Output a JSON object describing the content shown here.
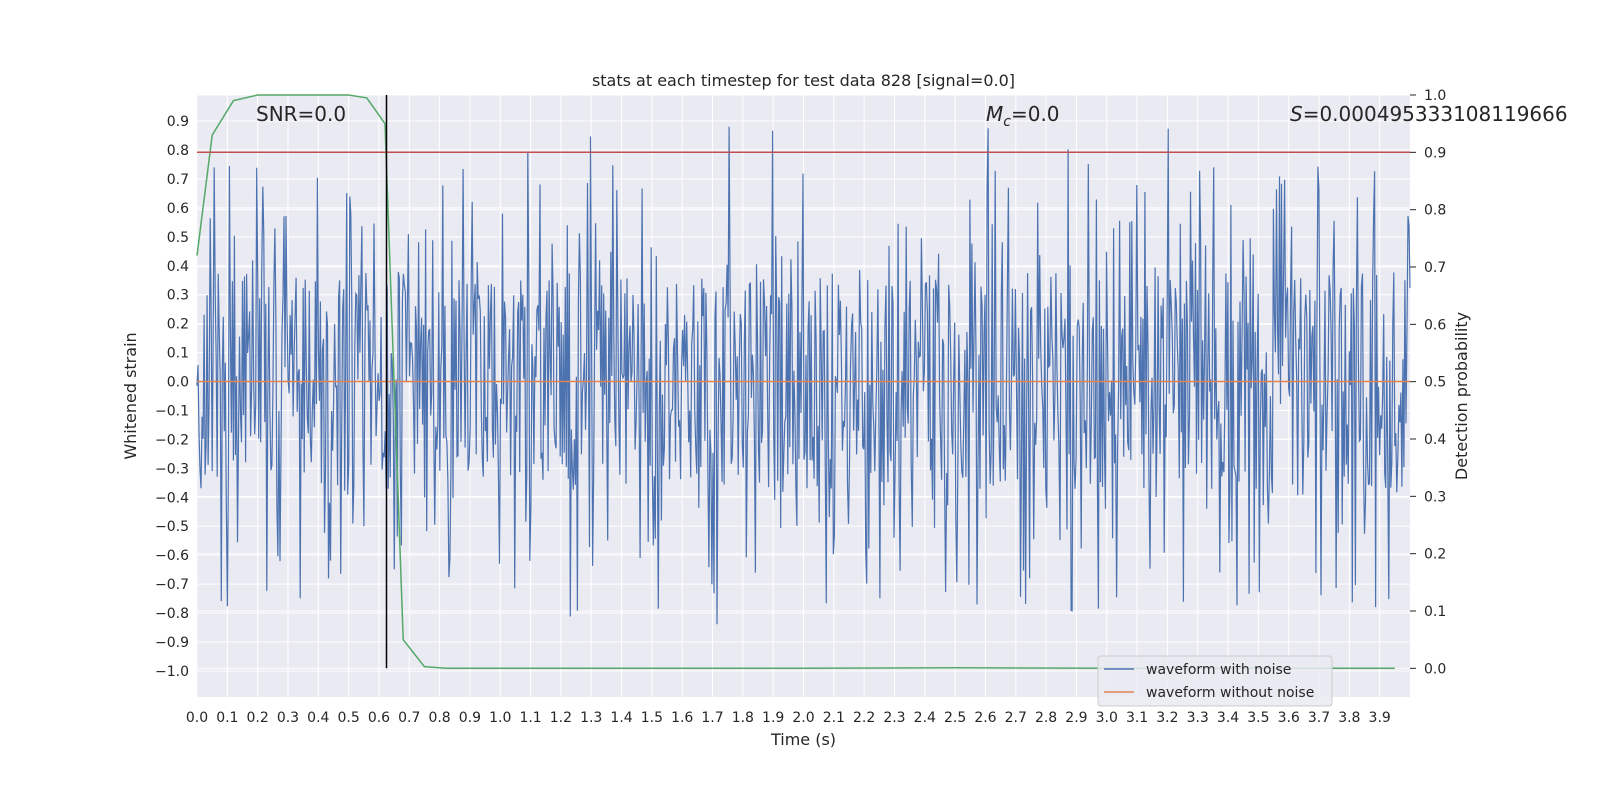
{
  "chart_data": {
    "type": "line",
    "title": "stats at each timestep for test data 828 [signal=0.0]",
    "xlabel": "Time (s)",
    "ylabel": "Whitened strain",
    "ylabel_right": "Detection probability",
    "xlim": [
      0.0,
      4.0
    ],
    "ylim": [
      -1.09,
      0.99
    ],
    "ylim_right": [
      -0.05,
      1.0
    ],
    "grid": true,
    "x_ticks": [
      "0.0",
      "0.1",
      "0.2",
      "0.3",
      "0.4",
      "0.5",
      "0.6",
      "0.7",
      "0.8",
      "0.9",
      "1.0",
      "1.1",
      "1.2",
      "1.3",
      "1.4",
      "1.5",
      "1.6",
      "1.7",
      "1.8",
      "1.9",
      "2.0",
      "2.1",
      "2.2",
      "2.3",
      "2.4",
      "2.5",
      "2.6",
      "2.7",
      "2.8",
      "2.9",
      "3.0",
      "3.1",
      "3.2",
      "3.3",
      "3.4",
      "3.5",
      "3.6",
      "3.7",
      "3.8",
      "3.9"
    ],
    "y_ticks": [
      "0.9",
      "0.8",
      "0.7",
      "0.6",
      "0.5",
      "0.4",
      "0.3",
      "0.2",
      "0.1",
      "0.0",
      "−0.1",
      "−0.2",
      "−0.3",
      "−0.4",
      "−0.5",
      "−0.6",
      "−0.7",
      "−0.8",
      "−0.9",
      "−1.0"
    ],
    "y_ticks_right": [
      "1.0",
      "0.9",
      "0.8",
      "0.7",
      "0.6",
      "0.5",
      "0.4",
      "0.3",
      "0.2",
      "0.1",
      "0.0"
    ],
    "annotations": {
      "snr": "SNR=0.0",
      "mc_symbol": "M",
      "mc_sub": "c",
      "mc_value": "=0.0",
      "s_symbol": "S",
      "s_value": "=0.000495333108119666"
    },
    "legend": {
      "placement": "bottom-right",
      "entries": [
        "waveform with noise",
        "waveform without noise"
      ]
    },
    "series": [
      {
        "name": "waveform with noise",
        "color": "#4c72b0",
        "axis": "left",
        "description_stats": {
          "sample_count": 1200,
          "envelope_max": 0.88,
          "envelope_min": -0.99
        }
      },
      {
        "name": "waveform without noise",
        "color": "#dd8452",
        "axis": "left",
        "x": [
          0.0,
          4.0
        ],
        "y": [
          0.0,
          0.0
        ]
      },
      {
        "color": "#55a868",
        "axis": "right",
        "x": [
          0.0,
          0.05,
          0.12,
          0.2,
          0.3,
          0.4,
          0.5,
          0.56,
          0.62,
          0.68,
          0.75,
          0.82,
          1.0,
          2.0,
          2.5,
          3.0,
          3.5,
          3.95
        ],
        "y": [
          0.72,
          0.93,
          0.99,
          1.0,
          1.0,
          1.0,
          1.0,
          0.995,
          0.95,
          0.05,
          0.003,
          0.0,
          0.0,
          0.0,
          0.001,
          0.0,
          0.0,
          0.0
        ]
      },
      {
        "color": "#c44e52",
        "axis": "right",
        "x": [
          0.0,
          4.0
        ],
        "y": [
          0.9,
          0.9
        ]
      },
      {
        "color": "#000000",
        "axis": "right",
        "x": [
          0.625,
          0.625
        ],
        "y": [
          0.0,
          1.0
        ]
      }
    ],
    "colors": {
      "axes_bg": "#eaeaf2",
      "grid": "#ffffff"
    }
  }
}
